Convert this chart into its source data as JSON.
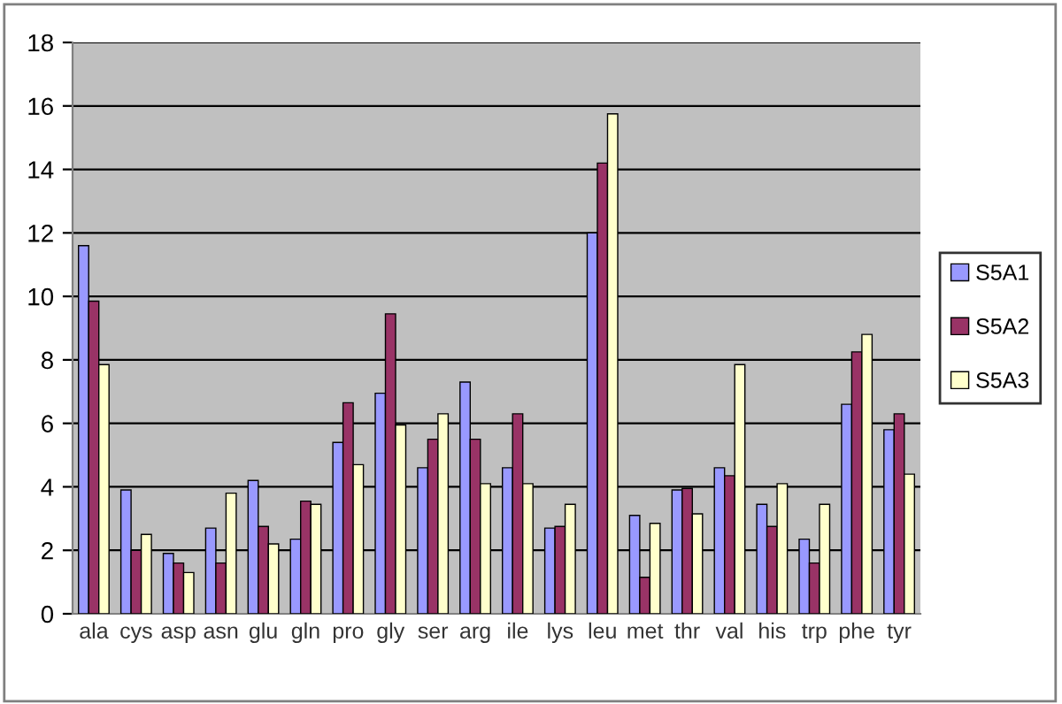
{
  "chart_data": {
    "type": "bar",
    "categories": [
      "ala",
      "cys",
      "asp",
      "asn",
      "glu",
      "gln",
      "pro",
      "gly",
      "ser",
      "arg",
      "ile",
      "lys",
      "leu",
      "met",
      "thr",
      "val",
      "his",
      "trp",
      "phe",
      "tyr"
    ],
    "series": [
      {
        "name": "S5A1",
        "color": "#9999ff",
        "values": [
          11.6,
          3.9,
          1.9,
          2.7,
          4.2,
          2.35,
          5.4,
          6.95,
          4.6,
          7.3,
          4.6,
          2.7,
          12.0,
          3.1,
          3.9,
          4.6,
          3.45,
          2.35,
          6.6,
          5.8
        ]
      },
      {
        "name": "S5A2",
        "color": "#993366",
        "values": [
          9.85,
          2.0,
          1.6,
          1.6,
          2.75,
          3.55,
          6.65,
          9.45,
          5.5,
          5.5,
          6.3,
          2.75,
          14.2,
          1.15,
          3.95,
          4.35,
          2.75,
          1.6,
          8.25,
          6.3
        ]
      },
      {
        "name": "S5A3",
        "color": "#ffffcc",
        "values": [
          7.85,
          2.5,
          1.3,
          3.8,
          2.2,
          3.45,
          4.7,
          5.95,
          6.3,
          4.1,
          4.1,
          3.45,
          15.75,
          2.85,
          3.15,
          7.85,
          4.1,
          3.45,
          8.8,
          4.4
        ]
      }
    ],
    "ylim": [
      0,
      18
    ],
    "yticks": [
      0,
      2,
      4,
      6,
      8,
      10,
      12,
      14,
      16,
      18
    ],
    "grid": "y",
    "legend": "right"
  }
}
